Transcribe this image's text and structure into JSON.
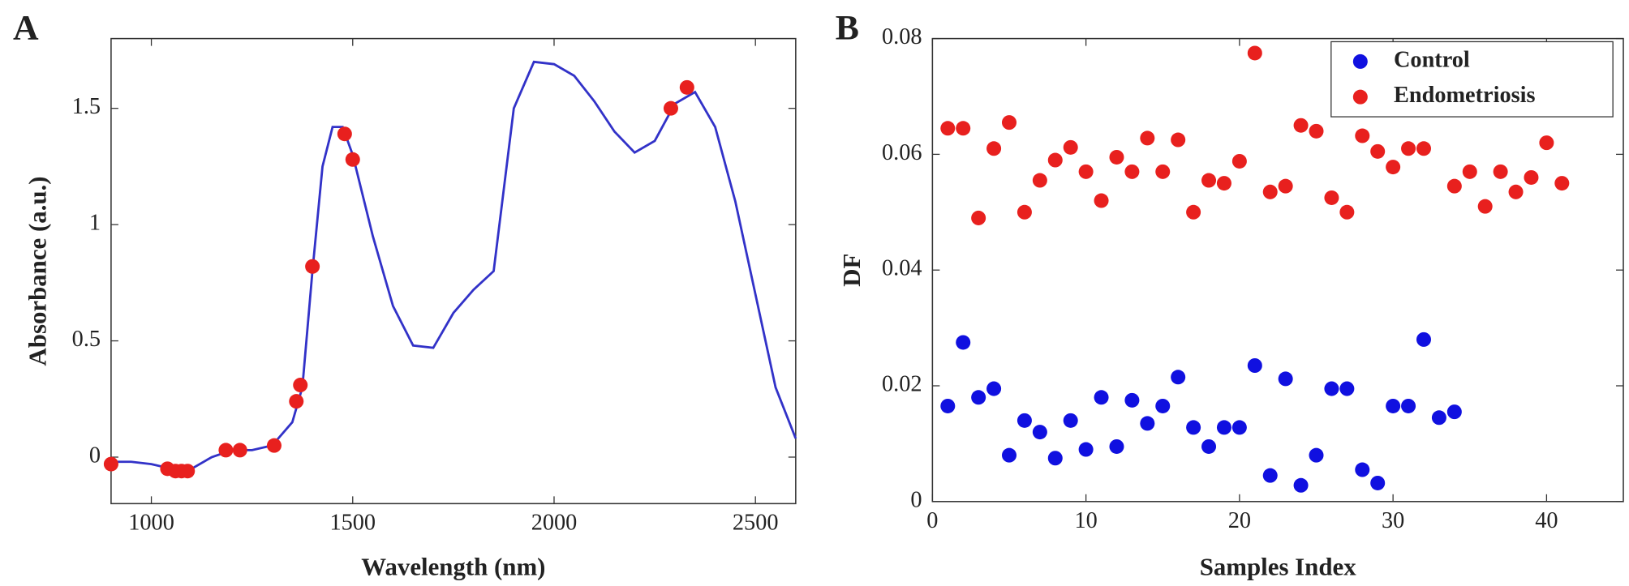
{
  "chart_data": [
    {
      "type": "line",
      "panel_label": "A",
      "xlabel": "Wavelength (nm)",
      "ylabel": "Absorbance (a.u.)",
      "xlim": [
        900,
        2600
      ],
      "ylim": [
        -0.2,
        1.8
      ],
      "xticks": [
        1000,
        1500,
        2000,
        2500
      ],
      "yticks": [
        0,
        0.5,
        1,
        1.5
      ],
      "grid": false,
      "series": [
        {
          "style": "line",
          "color": "#3232c8",
          "x": [
            900,
            950,
            1000,
            1050,
            1100,
            1150,
            1200,
            1250,
            1300,
            1350,
            1375,
            1400,
            1425,
            1450,
            1475,
            1500,
            1550,
            1600,
            1650,
            1700,
            1750,
            1800,
            1850,
            1900,
            1950,
            2000,
            2050,
            2100,
            2150,
            2200,
            2250,
            2300,
            2350,
            2400,
            2450,
            2500,
            2550,
            2600
          ],
          "values": [
            -0.02,
            -0.02,
            -0.03,
            -0.05,
            -0.05,
            0.0,
            0.03,
            0.03,
            0.05,
            0.15,
            0.3,
            0.8,
            1.25,
            1.42,
            1.42,
            1.3,
            0.95,
            0.65,
            0.48,
            0.47,
            0.62,
            0.72,
            0.8,
            1.5,
            1.7,
            1.69,
            1.64,
            1.53,
            1.4,
            1.31,
            1.36,
            1.52,
            1.57,
            1.42,
            1.1,
            0.7,
            0.3,
            0.08
          ]
        },
        {
          "style": "points",
          "color": "#e8201e",
          "x": [
            900,
            1040,
            1060,
            1075,
            1090,
            1185,
            1220,
            1305,
            1360,
            1370,
            1400,
            1480,
            1500,
            2290,
            2330
          ],
          "values": [
            -0.03,
            -0.05,
            -0.06,
            -0.06,
            -0.06,
            0.03,
            0.03,
            0.05,
            0.24,
            0.31,
            0.82,
            1.39,
            1.28,
            1.5,
            1.59
          ]
        }
      ]
    },
    {
      "type": "scatter",
      "panel_label": "B",
      "xlabel": "Samples Index",
      "ylabel": "DF",
      "xlim": [
        0,
        45
      ],
      "ylim": [
        0,
        0.08
      ],
      "xticks": [
        0,
        10,
        20,
        30,
        40
      ],
      "yticks": [
        0,
        0.02,
        0.04,
        0.06,
        0.08
      ],
      "grid": false,
      "legend": "top-right",
      "series": [
        {
          "name": "Control",
          "style": "points",
          "color": "#1010e0",
          "x": [
            1,
            2,
            3,
            4,
            5,
            6,
            7,
            8,
            9,
            10,
            11,
            12,
            13,
            14,
            15,
            16,
            17,
            18,
            19,
            20,
            21,
            22,
            23,
            24,
            25,
            26,
            27,
            28,
            29,
            30,
            31,
            32,
            33,
            34
          ],
          "values": [
            0.0165,
            0.0275,
            0.018,
            0.0195,
            0.008,
            0.014,
            0.012,
            0.0075,
            0.014,
            0.009,
            0.018,
            0.0095,
            0.0175,
            0.0135,
            0.0165,
            0.0215,
            0.0128,
            0.0095,
            0.0128,
            0.0128,
            0.0235,
            0.0045,
            0.0212,
            0.0028,
            0.008,
            0.0195,
            0.0195,
            0.0055,
            0.0032,
            0.0165,
            0.0165,
            0.028,
            0.0145,
            0.0155
          ]
        },
        {
          "name": "Endometriosis",
          "style": "points",
          "color": "#e8201e",
          "x": [
            1,
            2,
            3,
            4,
            5,
            6,
            7,
            8,
            9,
            10,
            11,
            12,
            13,
            14,
            15,
            16,
            17,
            18,
            19,
            20,
            21,
            22,
            23,
            24,
            25,
            26,
            27,
            28,
            29,
            30,
            31,
            32,
            34,
            35,
            36,
            37,
            38,
            39,
            40,
            41
          ],
          "values": [
            0.0645,
            0.0645,
            0.049,
            0.061,
            0.0655,
            0.05,
            0.0555,
            0.059,
            0.0612,
            0.057,
            0.052,
            0.0595,
            0.057,
            0.0628,
            0.057,
            0.0625,
            0.05,
            0.0555,
            0.055,
            0.0588,
            0.0775,
            0.0535,
            0.0545,
            0.065,
            0.064,
            0.0525,
            0.05,
            0.0632,
            0.0605,
            0.0578,
            0.061,
            0.061,
            0.0545,
            0.057,
            0.051,
            0.057,
            0.0535,
            0.056,
            0.062,
            0.055
          ]
        }
      ]
    }
  ]
}
